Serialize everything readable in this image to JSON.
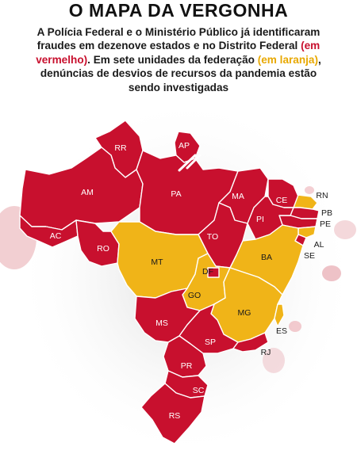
{
  "title": "O MAPA DA VERGONHA",
  "subtitle": {
    "part1": "A Polícia Federal e o Ministério Público já identificaram fraudes em dezenove estados e no Distrito Federal ",
    "red_note": "(em vermelho)",
    "part2": ". Em sete unidades da federação ",
    "orange_note": "(em laranja)",
    "part3": ", denúncias de desvios de recursos da pandemia estão sendo investigadas"
  },
  "colors": {
    "fraud": "#c8102e",
    "investigation": "#f0b418",
    "border": "#ffffff"
  },
  "states": [
    {
      "code": "RR",
      "category": "fraud"
    },
    {
      "code": "AP",
      "category": "fraud"
    },
    {
      "code": "AM",
      "category": "fraud"
    },
    {
      "code": "PA",
      "category": "fraud"
    },
    {
      "code": "MA",
      "category": "fraud"
    },
    {
      "code": "CE",
      "category": "fraud"
    },
    {
      "code": "RN",
      "category": "investigation"
    },
    {
      "code": "PB",
      "category": "fraud"
    },
    {
      "code": "PE",
      "category": "fraud"
    },
    {
      "code": "AL",
      "category": "investigation"
    },
    {
      "code": "SE",
      "category": "fraud"
    },
    {
      "code": "PI",
      "category": "fraud"
    },
    {
      "code": "AC",
      "category": "fraud"
    },
    {
      "code": "RO",
      "category": "fraud"
    },
    {
      "code": "TO",
      "category": "fraud"
    },
    {
      "code": "MT",
      "category": "investigation"
    },
    {
      "code": "BA",
      "category": "investigation"
    },
    {
      "code": "DF",
      "category": "fraud"
    },
    {
      "code": "GO",
      "category": "investigation"
    },
    {
      "code": "MG",
      "category": "investigation"
    },
    {
      "code": "ES",
      "category": "investigation"
    },
    {
      "code": "MS",
      "category": "fraud"
    },
    {
      "code": "SP",
      "category": "fraud"
    },
    {
      "code": "RJ",
      "category": "fraud"
    },
    {
      "code": "PR",
      "category": "fraud"
    },
    {
      "code": "SC",
      "category": "fraud"
    },
    {
      "code": "RS",
      "category": "fraud"
    }
  ]
}
